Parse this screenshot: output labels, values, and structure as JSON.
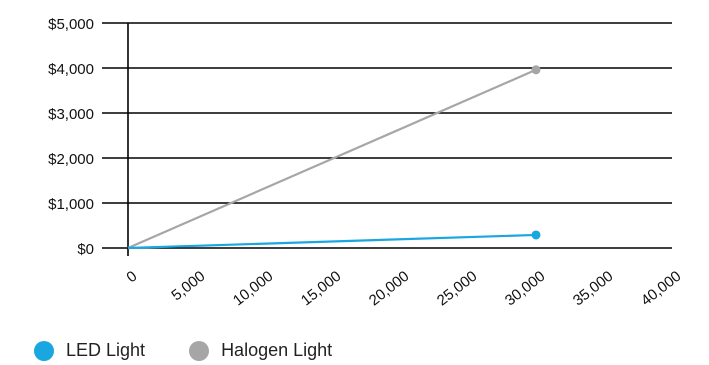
{
  "chart_data": {
    "type": "line",
    "x_ticks": [
      0,
      5000,
      10000,
      15000,
      20000,
      25000,
      30000,
      35000,
      40000
    ],
    "x_tick_labels": [
      "0",
      "5,000",
      "10,000",
      "15,000",
      "20,000",
      "25,000",
      "30,000",
      "35,000",
      "40,000"
    ],
    "xlim": [
      0,
      40000
    ],
    "y_ticks": [
      0,
      1000,
      2000,
      3000,
      4000,
      5000
    ],
    "y_tick_labels": [
      "$0",
      "$1,000",
      "$2,000",
      "$3,000",
      "$4,000",
      "$5,000"
    ],
    "ylim": [
      0,
      5000
    ],
    "grid": true,
    "legend_position": "bottom-left",
    "series": [
      {
        "name": "LED Light",
        "color": "#1aa7e0",
        "points": [
          [
            0,
            0
          ],
          [
            30000,
            290
          ]
        ]
      },
      {
        "name": "Halogen Light",
        "color": "#a6a6a6",
        "points": [
          [
            0,
            0
          ],
          [
            30000,
            3960
          ]
        ]
      }
    ]
  },
  "legend": {
    "items": [
      {
        "label": "LED Light",
        "color": "#1aa7e0"
      },
      {
        "label": "Halogen Light",
        "color": "#a6a6a6"
      }
    ]
  }
}
